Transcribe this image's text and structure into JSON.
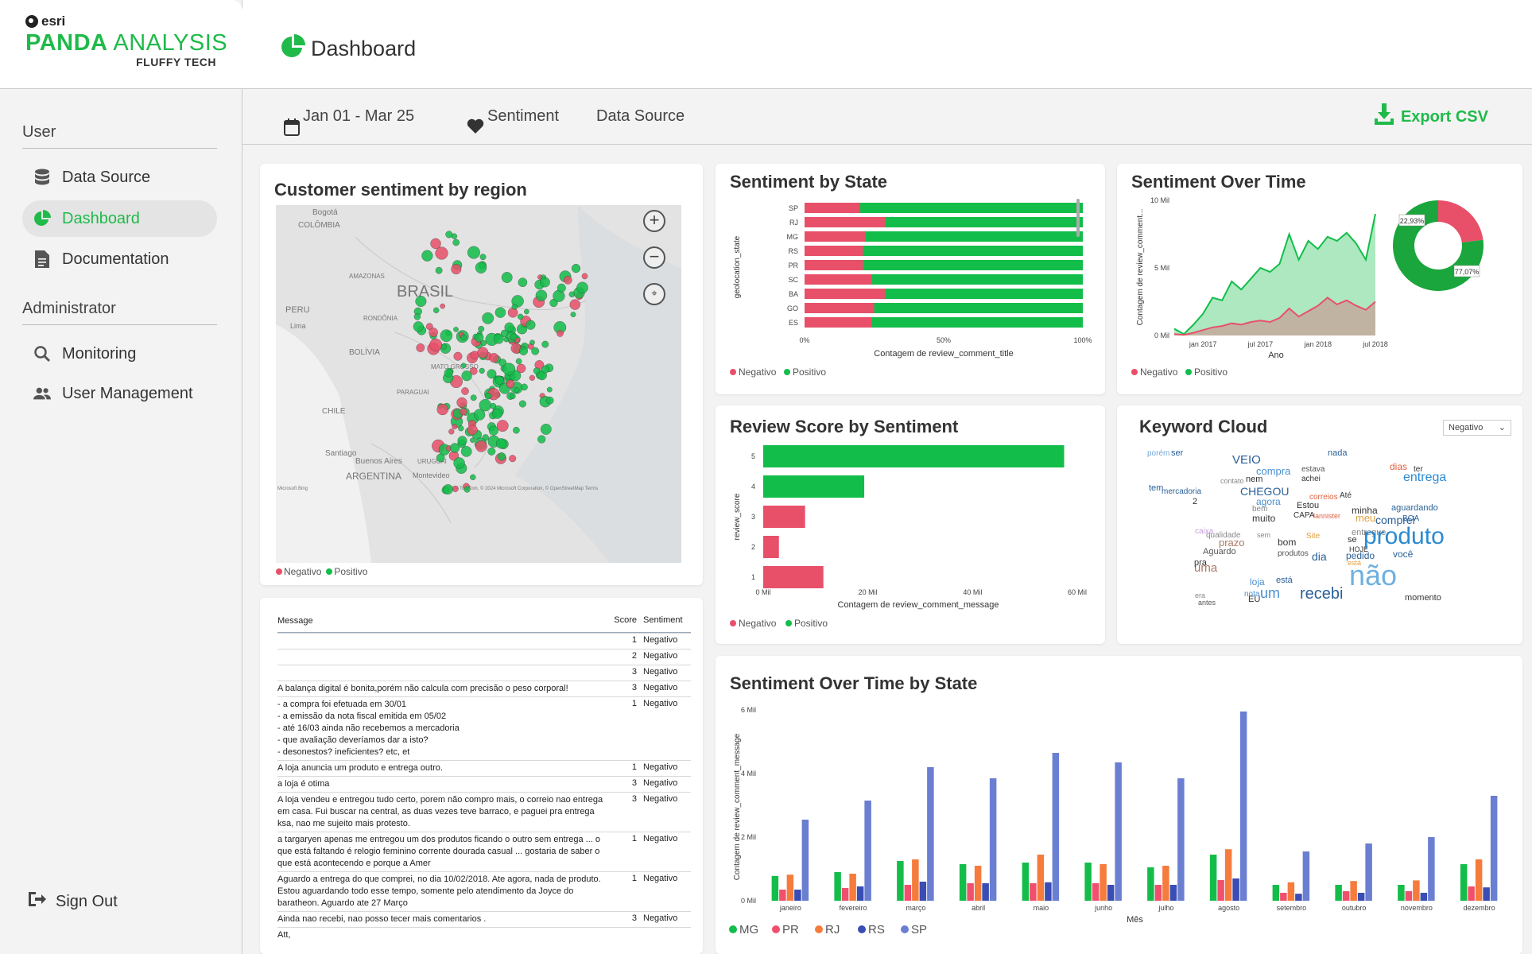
{
  "brand": {
    "esri": "esri",
    "title_bold": "PANDA",
    "title_rest": " ANALYSIS",
    "subtitle": "FLUFFY TECH"
  },
  "sidebar": {
    "user_section": "User",
    "admin_section": "Administrator",
    "items": [
      {
        "label": "Data Source",
        "icon": "database-icon"
      },
      {
        "label": "Dashboard",
        "icon": "pie-chart-icon",
        "active": true
      },
      {
        "label": "Documentation",
        "icon": "document-icon"
      },
      {
        "label": "Monitoring",
        "icon": "search-icon"
      },
      {
        "label": "User Management",
        "icon": "users-icon"
      }
    ],
    "sign_out": "Sign Out"
  },
  "header": {
    "title": "Dashboard"
  },
  "filters": {
    "date": "Jan 01 - Mar 25",
    "sentiment": "Sentiment",
    "data_source": "Data Source",
    "export": "Export CSV"
  },
  "colors": {
    "accent": "#1fba4a",
    "negative": "#e8506a",
    "positive": "#13bd4a",
    "mg": "#14bd4a",
    "pr": "#f0506e",
    "rj": "#f57c3c",
    "rs": "#3a4db4",
    "sp": "#6a7fd1"
  },
  "map_card": {
    "title": "Customer sentiment by region",
    "labels": [
      "Bogotá",
      "COLÔMBIA",
      "AMAZONAS",
      "PERU",
      "Lima",
      "BRASIL",
      "RONDÔNIA",
      "BOLÍVIA",
      "MATO GROSSO",
      "PARAGUAI",
      "CHILE",
      "Santiago",
      "Buenos Aires",
      "URUGUAI",
      "ARGENTINA",
      "Montevideo",
      "Microsoft Bing",
      "© 2024 TomTom, © 2024 Microsoft Corporation, © OpenStreetMap Terms"
    ],
    "legend": [
      "Negativo",
      "Positivo"
    ]
  },
  "table": {
    "headers": {
      "message": "Message",
      "score": "Score",
      "sentiment": "Sentiment"
    },
    "rows": [
      {
        "message": "",
        "score": "1",
        "sentiment": "Negativo"
      },
      {
        "message": "",
        "score": "2",
        "sentiment": "Negativo"
      },
      {
        "message": "",
        "score": "3",
        "sentiment": "Negativo"
      },
      {
        "message": "A balança digital é bonita,porém não calcula com precisão o peso corporal!",
        "score": "3",
        "sentiment": "Negativo"
      },
      {
        "message": "- a compra foi efetuada em 30/01\n- a emissão da nota fiscal emitida em 05/02\n- até 16/03 ainda não recebemos a mercadoria\n- que avaliação deveríamos dar a isto?\n- desonestos? ineficientes? etc, et",
        "score": "1",
        "sentiment": "Negativo"
      },
      {
        "message": "A loja anuncia um produto e entrega outro.",
        "score": "1",
        "sentiment": "Negativo"
      },
      {
        "message": "a loja é otima",
        "score": "3",
        "sentiment": "Negativo"
      },
      {
        "message": "A loja vendeu e entregou tudo certo, porem não compro mais, o correio nao entrega em casa. Fui buscar na central, as duas vezes teve barraco, e paguei pra entrega ksa, nao me sujeito mais protesto.",
        "score": "3",
        "sentiment": "Negativo"
      },
      {
        "message": "a targaryen apenas me entregou um dos produtos ficando o outro sem entrega ... o que está faltando é relogio feminino corrente dourada casual ... gostaria de saber o que está acontecendo e porque a Amer",
        "score": "1",
        "sentiment": "Negativo"
      },
      {
        "message": "Aguardo a entrega do que comprei, no dia 10/02/2018. Ate agora, nada de produto. Estou aguardando todo esse tempo, somente pelo atendimento da Joyce do baratheon. Aguardo ate 27 Março",
        "score": "1",
        "sentiment": "Negativo"
      },
      {
        "message": "Ainda nao recebi, nao posso tecer mais comentarios .",
        "score": "3",
        "sentiment": "Negativo"
      },
      {
        "message": "Att,",
        "score": "",
        "sentiment": ""
      }
    ]
  },
  "sentiment_by_state": {
    "title": "Sentiment by State",
    "ylabel": "geolocation_state",
    "xlabel": "Contagem de review_comment_title",
    "ticks": [
      "0%",
      "50%",
      "100%"
    ],
    "legend": [
      "Negativo",
      "Positivo"
    ]
  },
  "sentiment_over_time": {
    "title": "Sentiment Over Time",
    "ylabel": "Contagem de review_comment...",
    "xlabel": "Ano",
    "yticks": [
      "10 Mil",
      "5 Mil",
      "0 Mil"
    ],
    "xticks": [
      "jan 2017",
      "jul 2017",
      "jan 2018",
      "jul 2018"
    ],
    "legend": [
      "Negativo",
      "Positivo"
    ],
    "donut_labels": [
      "22,93%",
      "77,07%"
    ]
  },
  "review_score": {
    "title": "Review Score by Sentiment",
    "ylabel": "review_score",
    "xlabel": "Contagem de review_comment_message",
    "xticks": [
      "0 Mil",
      "20 Mil",
      "40 Mil",
      "60 Mil"
    ],
    "legend": [
      "Negativo",
      "Positivo"
    ]
  },
  "keyword_cloud": {
    "title": "Keyword Cloud",
    "dropdown": "Negativo",
    "words": [
      {
        "t": "porém",
        "c": "#6fa8dc",
        "s": 10
      },
      {
        "t": "ser",
        "c": "#2a6099",
        "s": 11
      },
      {
        "t": "VEIO",
        "c": "#2a6099",
        "s": 15
      },
      {
        "t": "nada",
        "c": "#2a6099",
        "s": 11
      },
      {
        "t": "dias",
        "c": "#e06040",
        "s": 12
      },
      {
        "t": "compra",
        "c": "#4a90d0",
        "s": 13
      },
      {
        "t": "estava",
        "c": "#555",
        "s": 10
      },
      {
        "t": "achei",
        "c": "#333",
        "s": 10
      },
      {
        "t": "ter",
        "c": "#333",
        "s": 10
      },
      {
        "t": "entrega",
        "c": "#2a8ad0",
        "s": 16
      },
      {
        "t": "contato",
        "c": "#888",
        "s": 9
      },
      {
        "t": "nem",
        "c": "#333",
        "s": 11
      },
      {
        "t": "tem",
        "c": "#2a6099",
        "s": 11
      },
      {
        "t": "mercadoria",
        "c": "#2a6099",
        "s": 10
      },
      {
        "t": "CHEGOU",
        "c": "#2a6099",
        "s": 14
      },
      {
        "t": "agora",
        "c": "#4a90d0",
        "s": 12
      },
      {
        "t": "correios",
        "c": "#e06040",
        "s": 10
      },
      {
        "t": "Até",
        "c": "#333",
        "s": 10
      },
      {
        "t": "2",
        "c": "#333",
        "s": 11
      },
      {
        "t": "bem",
        "c": "#888",
        "s": 10
      },
      {
        "t": "Estou",
        "c": "#333",
        "s": 11
      },
      {
        "t": "minha",
        "c": "#333",
        "s": 12
      },
      {
        "t": "aguardando",
        "c": "#2a6099",
        "s": 11
      },
      {
        "t": "muito",
        "c": "#333",
        "s": 12
      },
      {
        "t": "CAPA",
        "c": "#333",
        "s": 10
      },
      {
        "t": "lannister",
        "c": "#e06040",
        "s": 9
      },
      {
        "t": "meu",
        "c": "#e0a040",
        "s": 13
      },
      {
        "t": "comprei",
        "c": "#2a6099",
        "s": 14
      },
      {
        "t": "BOA",
        "c": "#2a6099",
        "s": 10
      },
      {
        "t": "caixa",
        "c": "#c8a0e0",
        "s": 10
      },
      {
        "t": "qualidade",
        "c": "#888",
        "s": 10
      },
      {
        "t": "entregue",
        "c": "#888",
        "s": 11
      },
      {
        "t": "sem",
        "c": "#888",
        "s": 9
      },
      {
        "t": "se",
        "c": "#333",
        "s": 11
      },
      {
        "t": "prazo",
        "c": "#aa7766",
        "s": 13
      },
      {
        "t": "bom",
        "c": "#333",
        "s": 12
      },
      {
        "t": "Site",
        "c": "#e0a040",
        "s": 10
      },
      {
        "t": "HOJE",
        "c": "#333",
        "s": 9
      },
      {
        "t": "produto",
        "c": "#2a8ad0",
        "s": 30
      },
      {
        "t": "Aguardo",
        "c": "#555",
        "s": 11
      },
      {
        "t": "produtos",
        "c": "#555",
        "s": 10
      },
      {
        "t": "você",
        "c": "#2a6099",
        "s": 12
      },
      {
        "t": "pedido",
        "c": "#2a6099",
        "s": 12
      },
      {
        "t": "está",
        "c": "#e0a040",
        "s": 9
      },
      {
        "t": "dia",
        "c": "#2a6099",
        "s": 14
      },
      {
        "t": "uma",
        "c": "#aa7766",
        "s": 15
      },
      {
        "t": "pra",
        "c": "#333",
        "s": 11
      },
      {
        "t": "não",
        "c": "#6fb0e0",
        "s": 36
      },
      {
        "t": "loja",
        "c": "#4a90d0",
        "s": 12
      },
      {
        "t": "está",
        "c": "#2a6099",
        "s": 11
      },
      {
        "t": "um",
        "c": "#4a90d0",
        "s": 18
      },
      {
        "t": "nota",
        "c": "#4a90d0",
        "s": 10
      },
      {
        "t": "era",
        "c": "#888",
        "s": 9
      },
      {
        "t": "antes",
        "c": "#555",
        "s": 9
      },
      {
        "t": "EU",
        "c": "#333",
        "s": 11
      },
      {
        "t": "recebi",
        "c": "#2a6099",
        "s": 20
      },
      {
        "t": "momento",
        "c": "#333",
        "s": 11
      }
    ]
  },
  "state_month": {
    "title": "Sentiment Over Time by State",
    "ylabel": "Contagem de review_comment_message",
    "xlabel": "Mês",
    "yticks": [
      "6 Mil",
      "4 Mil",
      "2 Mil",
      "0 Mil"
    ],
    "legend": [
      "MG",
      "PR",
      "RJ",
      "RS",
      "SP"
    ]
  },
  "chart_data": [
    {
      "type": "bar",
      "title": "Sentiment by State",
      "orientation": "horizontal",
      "stacked": "100%",
      "categories": [
        "SP",
        "RJ",
        "MG",
        "RS",
        "PR",
        "SC",
        "BA",
        "GO",
        "ES"
      ],
      "series": [
        {
          "name": "Negativo",
          "values": [
            20,
            29,
            22,
            21,
            21,
            24,
            29,
            25,
            24
          ]
        },
        {
          "name": "Positivo",
          "values": [
            80,
            71,
            78,
            79,
            79,
            76,
            71,
            75,
            76
          ]
        }
      ],
      "xlabel": "Contagem de review_comment_title",
      "ylabel": "geolocation_state"
    },
    {
      "type": "area",
      "title": "Sentiment Over Time",
      "x": [
        "2016-10",
        "2016-12",
        "2017-01",
        "2017-02",
        "2017-03",
        "2017-04",
        "2017-05",
        "2017-06",
        "2017-07",
        "2017-08",
        "2017-09",
        "2017-10",
        "2017-11",
        "2017-12",
        "2018-01",
        "2018-02",
        "2018-03",
        "2018-04",
        "2018-05",
        "2018-06",
        "2018-07",
        "2018-08"
      ],
      "series": [
        {
          "name": "Negativo",
          "values": [
            0.1,
            0.05,
            0.2,
            0.4,
            0.6,
            0.7,
            0.9,
            0.8,
            1.0,
            1.1,
            1.0,
            1.3,
            2.0,
            1.4,
            1.8,
            2.2,
            2.8,
            2.3,
            2.6,
            2.2,
            1.9,
            2.5
          ]
        },
        {
          "name": "Positivo",
          "values": [
            0.5,
            0.1,
            0.8,
            1.6,
            2.8,
            2.6,
            4.0,
            3.4,
            4.2,
            5.0,
            4.7,
            5.3,
            7.5,
            5.6,
            7.0,
            6.4,
            7.3,
            7.0,
            7.6,
            6.8,
            5.6,
            9.0
          ]
        }
      ],
      "ylabel": "Contagem de review_comment...",
      "xlabel": "Ano",
      "yunit": "Mil"
    },
    {
      "type": "pie",
      "title": "Sentiment Over Time",
      "categories": [
        "Negativo",
        "Positivo"
      ],
      "values": [
        22.93,
        77.07
      ]
    },
    {
      "type": "bar",
      "title": "Review Score by Sentiment",
      "orientation": "horizontal",
      "categories": [
        "5",
        "4",
        "3",
        "2",
        "1"
      ],
      "values": [
        57.5,
        19.3,
        8.0,
        3.0,
        11.5
      ],
      "colors_by_sentiment": [
        "Positivo",
        "Positivo",
        "Negativo",
        "Negativo",
        "Negativo"
      ],
      "xlabel": "Contagem de review_comment_message",
      "ylabel": "review_score",
      "xlim": [
        0,
        60
      ]
    },
    {
      "type": "bar",
      "title": "Sentiment Over Time by State",
      "categories": [
        "janeiro",
        "fevereiro",
        "março",
        "abril",
        "maio",
        "junho",
        "julho",
        "agosto",
        "setembro",
        "outubro",
        "novembro",
        "dezembro"
      ],
      "series": [
        {
          "name": "MG",
          "values": [
            0.78,
            0.9,
            1.25,
            1.15,
            1.2,
            1.2,
            1.05,
            1.45,
            0.5,
            0.5,
            0.5,
            1.15
          ]
        },
        {
          "name": "PR",
          "values": [
            0.35,
            0.4,
            0.5,
            0.55,
            0.55,
            0.55,
            0.5,
            0.65,
            0.25,
            0.3,
            0.3,
            0.45
          ]
        },
        {
          "name": "RJ",
          "values": [
            0.82,
            0.85,
            1.3,
            1.1,
            1.45,
            1.15,
            1.1,
            1.62,
            0.58,
            0.62,
            0.64,
            1.3
          ]
        },
        {
          "name": "RS",
          "values": [
            0.35,
            0.45,
            0.6,
            0.55,
            0.58,
            0.5,
            0.5,
            0.7,
            0.22,
            0.25,
            0.25,
            0.42
          ]
        },
        {
          "name": "SP",
          "values": [
            2.55,
            3.15,
            4.2,
            3.85,
            4.65,
            4.35,
            3.85,
            5.95,
            1.55,
            1.8,
            2.0,
            3.3
          ]
        }
      ],
      "xlabel": "Mês",
      "ylabel": "Contagem de review_comment_message",
      "ylim": [
        0,
        6
      ],
      "yunit": "Mil"
    }
  ]
}
